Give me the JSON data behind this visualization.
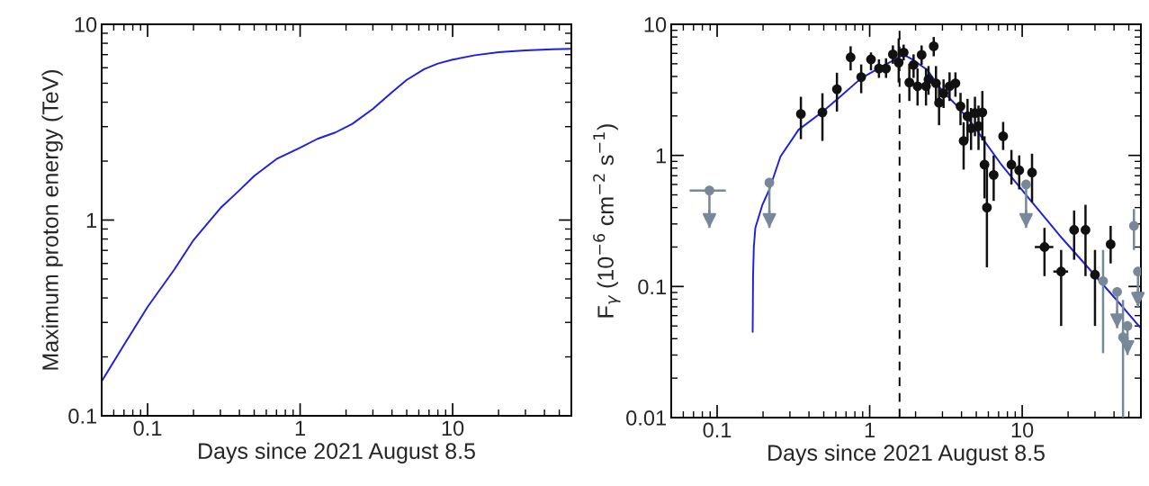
{
  "chart_data": [
    {
      "type": "line",
      "xlabel": "Days since 2021 August 8.5",
      "ylabel": "Maximum proton energy (TeV)",
      "log": "xy",
      "xlim": [
        0.05,
        60
      ],
      "ylim": [
        0.1,
        10
      ],
      "xticks": [
        0.1,
        1,
        10
      ],
      "yticks": [
        0.1,
        1,
        10
      ],
      "grid": false,
      "legend": false,
      "series": [
        {
          "color": "#1f1fe0",
          "x": [
            0.05,
            0.07,
            0.1,
            0.15,
            0.2,
            0.3,
            0.4,
            0.5,
            0.7,
            1,
            1.3,
            1.7,
            2.2,
            3,
            4,
            5,
            6.5,
            8,
            10,
            14,
            20,
            30,
            45,
            60
          ],
          "values": [
            0.15,
            0.23,
            0.36,
            0.56,
            0.79,
            1.15,
            1.42,
            1.68,
            2.05,
            2.34,
            2.6,
            2.8,
            3.1,
            3.7,
            4.5,
            5.2,
            5.9,
            6.3,
            6.6,
            6.95,
            7.2,
            7.35,
            7.45,
            7.5
          ]
        }
      ]
    },
    {
      "type": "scatter",
      "xlabel": "Days since 2021 August 8.5",
      "ylabel": "F$_{γ}$ (10$^{−6}$ cm$^{−2}$ s$^{−1}$)",
      "log": "xy",
      "xlim": [
        0.05,
        60
      ],
      "ylim": [
        0.01,
        10
      ],
      "xticks": [
        0.1,
        1,
        10
      ],
      "yticks": [
        0.01,
        0.1,
        1,
        10
      ],
      "grid": false,
      "legend": false,
      "ref_lines": [
        {
          "axis": "x",
          "value": 1.57,
          "color": "#000000",
          "line_style": "dashed"
        }
      ],
      "series": [
        {
          "type": "scatter",
          "color": "#111111",
          "marker": "circle",
          "x": [
            0.354,
            0.49,
            0.61,
            0.75,
            0.88,
            1.02,
            1.15,
            1.28,
            1.42,
            1.55,
            1.67,
            1.82,
            1.94,
            2.06,
            2.19,
            2.34,
            2.43,
            2.63,
            2.72,
            2.85,
            3.05,
            3.34,
            3.65,
            3.94,
            4.13,
            4.38,
            4.62,
            4.9,
            5.17,
            5.48,
            5.66,
            5.87,
            6.5,
            7.5,
            8.5,
            9.56,
            11.6,
            14,
            18,
            21.9,
            26,
            30,
            38
          ],
          "values": [
            2.07,
            2.13,
            3.2,
            5.6,
            3.96,
            5.4,
            4.6,
            4.6,
            5.9,
            5.1,
            6.1,
            3.6,
            4.9,
            3.37,
            5.85,
            3.37,
            3.8,
            6.8,
            3.55,
            2.52,
            2.98,
            3.37,
            3.55,
            2.37,
            1.29,
            1.99,
            1.61,
            2.1,
            1.67,
            2.13,
            0.85,
            0.4,
            0.71,
            1.4,
            0.85,
            0.77,
            0.74,
            0.2,
            0.13,
            0.27,
            0.27,
            0.123,
            0.21
          ],
          "errors": [
            [
              1.33,
              2.8
            ],
            [
              1.29,
              2.98
            ],
            [
              2.16,
              4.27
            ],
            [
              4.45,
              6.8
            ],
            [
              2.98,
              4.94
            ],
            [
              4.45,
              6.1
            ],
            [
              3.9,
              5.4
            ],
            [
              3.9,
              5.5
            ],
            [
              5.0,
              6.9
            ],
            [
              3.6,
              7.8
            ],
            [
              5.3,
              7.0
            ],
            [
              2.6,
              5.0
            ],
            [
              3.9,
              5.9
            ],
            [
              2.4,
              4.6
            ],
            [
              4.9,
              6.9
            ],
            [
              2.4,
              4.6
            ],
            [
              2.9,
              4.8
            ],
            [
              5.7,
              8.0
            ],
            [
              2.5,
              4.8
            ],
            [
              1.7,
              3.4
            ],
            [
              2.3,
              3.8
            ],
            [
              2.6,
              4.3
            ],
            [
              2.8,
              4.3
            ],
            [
              1.7,
              3.0
            ],
            [
              0.78,
              1.79
            ],
            [
              1.3,
              2.7
            ],
            [
              1.1,
              2.3
            ],
            [
              1.4,
              2.8
            ],
            [
              1.1,
              2.4
            ],
            [
              1.3,
              3.1
            ],
            [
              0.47,
              1.4
            ],
            [
              0.14,
              0.9
            ],
            [
              0.45,
              1.0
            ],
            [
              1.1,
              1.8
            ],
            [
              0.6,
              1.1
            ],
            [
              0.55,
              1.0
            ],
            [
              0.44,
              1.03
            ],
            [
              0.12,
              0.28
            ],
            [
              0.05,
              0.19
            ],
            [
              0.16,
              0.38
            ],
            [
              0.12,
              0.42
            ],
            [
              0.05,
              0.19
            ],
            [
              0.15,
              0.29
            ]
          ],
          "xerrors": [
            null,
            null,
            null,
            null,
            null,
            null,
            null,
            null,
            null,
            null,
            null,
            null,
            null,
            null,
            null,
            null,
            null,
            null,
            null,
            null,
            null,
            null,
            null,
            null,
            null,
            null,
            null,
            null,
            null,
            null,
            null,
            null,
            null,
            null,
            null,
            null,
            null,
            [
              12.1,
              16
            ],
            [
              16,
              20
            ],
            null,
            null,
            null,
            null
          ]
        },
        {
          "type": "scatter",
          "color": "#778899",
          "marker": "circle",
          "x": [
            33.9,
            45.8,
            54
          ],
          "values": [
            0.11,
            0.041,
            0.29
          ],
          "errors": [
            [
              0.031,
              0.19
            ],
            [
              0.01,
              0.079
            ],
            [
              0.19,
              0.39
            ]
          ]
        },
        {
          "type": "scatter",
          "color": "#778899",
          "marker": "circle",
          "x": [
            0.089,
            0.22,
            10.6,
            41.9,
            49,
            57.4
          ],
          "values": [
            0.54,
            0.62,
            0.6,
            0.091,
            0.05,
            0.13
          ],
          "errors": [
            [
              0.28,
              0.54
            ],
            [
              0.28,
              0.62
            ],
            [
              0.28,
              0.6
            ],
            [
              0.048,
              0.091
            ],
            [
              0.03,
              0.05
            ],
            [
              0.07,
              0.13
            ]
          ],
          "xerrors": [
            [
              0.066,
              0.114
            ],
            null,
            null,
            null,
            null,
            null
          ]
        },
        {
          "type": "line",
          "color": "#1f1fe0",
          "x": [
            0.171,
            0.172,
            0.174,
            0.178,
            0.198,
            0.22,
            0.26,
            0.342,
            0.49,
            0.64,
            0.88,
            1.26,
            1.67,
            1.9,
            2.38,
            3.0,
            3.72,
            4.7,
            5.87,
            7.36,
            9.2,
            11.5,
            18.1,
            28.5,
            45,
            59
          ],
          "values": [
            0.045,
            0.12,
            0.2,
            0.28,
            0.42,
            0.55,
            0.98,
            1.57,
            2.15,
            2.8,
            3.88,
            4.9,
            5.85,
            5.4,
            4.5,
            3.1,
            2.4,
            1.74,
            1.21,
            0.84,
            0.61,
            0.445,
            0.236,
            0.13,
            0.071,
            0.049
          ]
        }
      ]
    }
  ]
}
